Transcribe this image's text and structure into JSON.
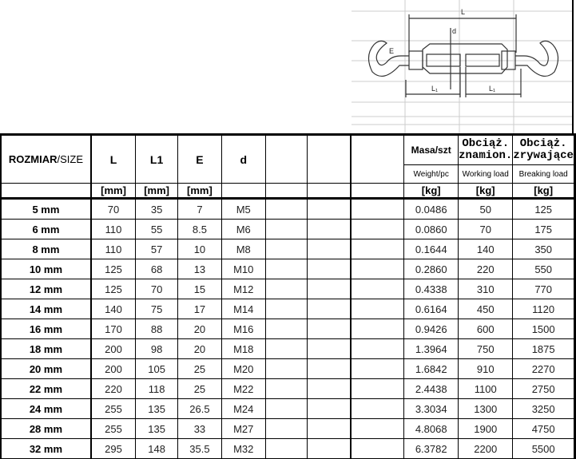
{
  "diagram": {
    "labels": {
      "L": "L",
      "d": "d",
      "E": "E",
      "L1": "L₁"
    }
  },
  "header": {
    "size_bold": "ROZMIAR",
    "size_thin": "/SIZE",
    "L": "L",
    "L1": "L1",
    "E": "E",
    "d": "d",
    "mass": "Masa/szt",
    "mass_en": "Weight/pc",
    "working": "Obciąż. znamion.",
    "working_en": "Working load",
    "breaking": "Obciąż. zrywające",
    "breaking_en": "Breaking load",
    "unit_mm": "[mm]",
    "unit_kg": "[kg]"
  },
  "rows": [
    {
      "size": "5 mm",
      "L": "70",
      "L1": "35",
      "E": "7",
      "d": "M5",
      "mass": "0.0486",
      "wll": "50",
      "mbl": "125"
    },
    {
      "size": "6 mm",
      "L": "110",
      "L1": "55",
      "E": "8.5",
      "d": "M6",
      "mass": "0.0860",
      "wll": "70",
      "mbl": "175"
    },
    {
      "size": "8 mm",
      "L": "110",
      "L1": "57",
      "E": "10",
      "d": "M8",
      "mass": "0.1644",
      "wll": "140",
      "mbl": "350"
    },
    {
      "size": "10 mm",
      "L": "125",
      "L1": "68",
      "E": "13",
      "d": "M10",
      "mass": "0.2860",
      "wll": "220",
      "mbl": "550"
    },
    {
      "size": "12 mm",
      "L": "125",
      "L1": "70",
      "E": "15",
      "d": "M12",
      "mass": "0.4338",
      "wll": "310",
      "mbl": "770"
    },
    {
      "size": "14 mm",
      "L": "140",
      "L1": "75",
      "E": "17",
      "d": "M14",
      "mass": "0.6164",
      "wll": "450",
      "mbl": "1120"
    },
    {
      "size": "16 mm",
      "L": "170",
      "L1": "88",
      "E": "20",
      "d": "M16",
      "mass": "0.9426",
      "wll": "600",
      "mbl": "1500"
    },
    {
      "size": "18 mm",
      "L": "200",
      "L1": "98",
      "E": "20",
      "d": "M18",
      "mass": "1.3964",
      "wll": "750",
      "mbl": "1875"
    },
    {
      "size": "20 mm",
      "L": "200",
      "L1": "105",
      "E": "25",
      "d": "M20",
      "mass": "1.6842",
      "wll": "910",
      "mbl": "2270"
    },
    {
      "size": "22 mm",
      "L": "220",
      "L1": "118",
      "E": "25",
      "d": "M22",
      "mass": "2.4438",
      "wll": "1100",
      "mbl": "2750"
    },
    {
      "size": "24 mm",
      "L": "255",
      "L1": "135",
      "E": "26.5",
      "d": "M24",
      "mass": "3.3034",
      "wll": "1300",
      "mbl": "3250"
    },
    {
      "size": "28 mm",
      "L": "255",
      "L1": "135",
      "E": "33",
      "d": "M27",
      "mass": "4.8068",
      "wll": "1900",
      "mbl": "4750"
    },
    {
      "size": "32 mm",
      "L": "295",
      "L1": "148",
      "E": "35.5",
      "d": "M32",
      "mass": "6.3782",
      "wll": "2200",
      "mbl": "5500"
    }
  ]
}
